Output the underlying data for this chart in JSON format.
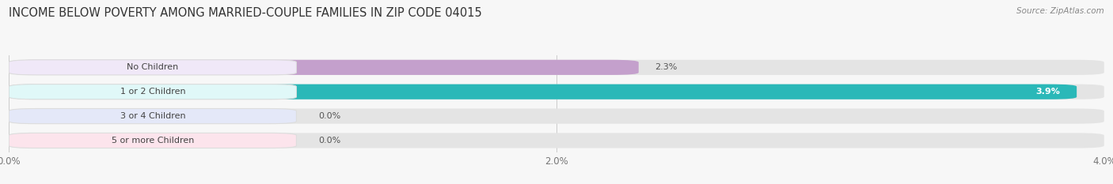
{
  "title": "INCOME BELOW POVERTY AMONG MARRIED-COUPLE FAMILIES IN ZIP CODE 04015",
  "source": "Source: ZipAtlas.com",
  "categories": [
    "No Children",
    "1 or 2 Children",
    "3 or 4 Children",
    "5 or more Children"
  ],
  "values": [
    2.3,
    3.9,
    0.0,
    0.0
  ],
  "bar_colors": [
    "#c4a0cc",
    "#2ab8b8",
    "#a8aee0",
    "#f4a8bc"
  ],
  "label_bg_colors": [
    "#f0e8f8",
    "#e0f8f8",
    "#e4e8f8",
    "#fce4ec"
  ],
  "value_labels": [
    "2.3%",
    "3.9%",
    "0.0%",
    "0.0%"
  ],
  "value_inside": [
    false,
    true,
    false,
    false
  ],
  "xlim": [
    0,
    4.0
  ],
  "xticks": [
    0.0,
    2.0,
    4.0
  ],
  "xticklabels": [
    "0.0%",
    "2.0%",
    "4.0%"
  ],
  "background_color": "#f7f7f7",
  "bar_bg_color": "#e4e4e4",
  "title_fontsize": 10.5,
  "tick_fontsize": 8.5,
  "label_fontsize": 8,
  "value_fontsize": 8
}
